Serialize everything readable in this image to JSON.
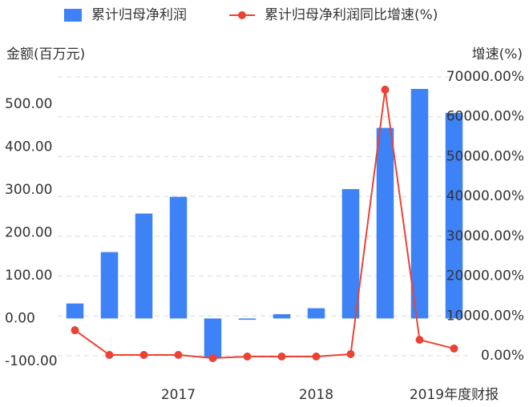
{
  "chart_data": {
    "type": "bar-line",
    "y_label": "金额(百万元)",
    "y2_label": "增速(%)",
    "categories": [
      null,
      null,
      null,
      "2017",
      null,
      null,
      null,
      "2018",
      null,
      null,
      null,
      "2019年度财报"
    ],
    "series": [
      {
        "name": "累计归母净利润",
        "color": "#3e82f7",
        "type": "bar",
        "values": [
          35,
          155,
          245,
          284,
          -92,
          -3,
          10,
          24,
          302,
          445,
          536,
          480
        ]
      },
      {
        "name": "累计归母净利润同比增速(%)",
        "color": "#ea4335",
        "type": "line",
        "axis": "y2",
        "values": [
          6400,
          200,
          200,
          200,
          -600,
          -200,
          -200,
          -200,
          400,
          66800,
          4000,
          1800
        ]
      }
    ],
    "ylim": [
      -87,
      564
    ],
    "yticks": [
      {
        "value": -100,
        "label": "-100.00"
      },
      {
        "value": 0,
        "label": "0.00"
      },
      {
        "value": 100,
        "label": "100.00"
      },
      {
        "value": 200,
        "label": "200.00"
      },
      {
        "value": 300,
        "label": "300.00"
      },
      {
        "value": 400,
        "label": "400.00"
      },
      {
        "value": 500,
        "label": "500.00"
      }
    ],
    "y2lim": [
      0,
      70000
    ],
    "y2ticks": [
      {
        "value": 0,
        "label": "0.00%"
      },
      {
        "value": 10000,
        "label": "10000.00%"
      },
      {
        "value": 20000,
        "label": "20000.00%"
      },
      {
        "value": 30000,
        "label": "30000.00%"
      },
      {
        "value": 40000,
        "label": "40000.00%"
      },
      {
        "value": 50000,
        "label": "50000.00%"
      },
      {
        "value": 60000,
        "label": "60000.00%"
      },
      {
        "value": 70000,
        "label": "70000.00%"
      }
    ],
    "grid": true
  }
}
